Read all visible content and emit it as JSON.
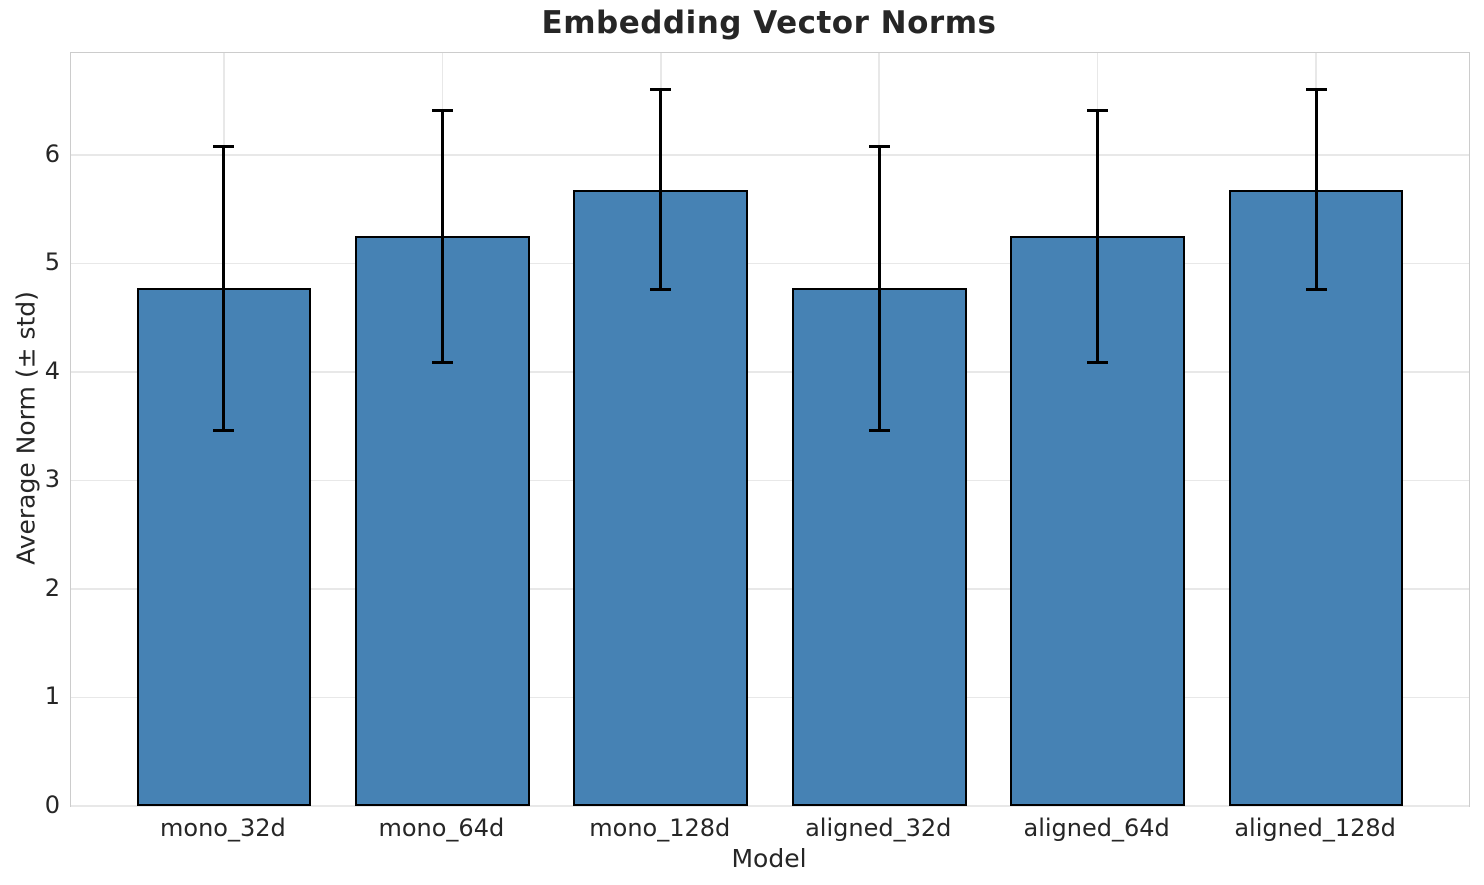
{
  "chart_data": {
    "type": "bar",
    "title": "Embedding Vector Norms",
    "xlabel": "Model",
    "ylabel": "Average Norm (± std)",
    "categories": [
      "mono_32d",
      "mono_64d",
      "mono_128d",
      "aligned_32d",
      "aligned_64d",
      "aligned_128d"
    ],
    "series": [
      {
        "name": "Average Norm",
        "values": [
          4.77,
          5.25,
          5.68,
          4.77,
          5.25,
          5.68
        ],
        "errors": [
          1.31,
          1.16,
          0.92,
          1.31,
          1.16,
          0.92
        ]
      }
    ],
    "error_bar_style": "± std, symmetric, black caps",
    "yticks": [
      "0",
      "1",
      "2",
      "3",
      "4",
      "5",
      "6"
    ],
    "ylim": [
      0,
      6.94
    ],
    "xlim": [
      -0.7,
      5.7
    ],
    "bar_width_units": 0.8,
    "grid": true,
    "legend": false,
    "colors": {
      "bar_fill": "#4682B4",
      "bar_edge": "#000000",
      "error_bar": "#000000",
      "grid_line": "#e8e8e8",
      "spine": "#cccccc",
      "text": "#262626",
      "background": "#ffffff"
    }
  }
}
